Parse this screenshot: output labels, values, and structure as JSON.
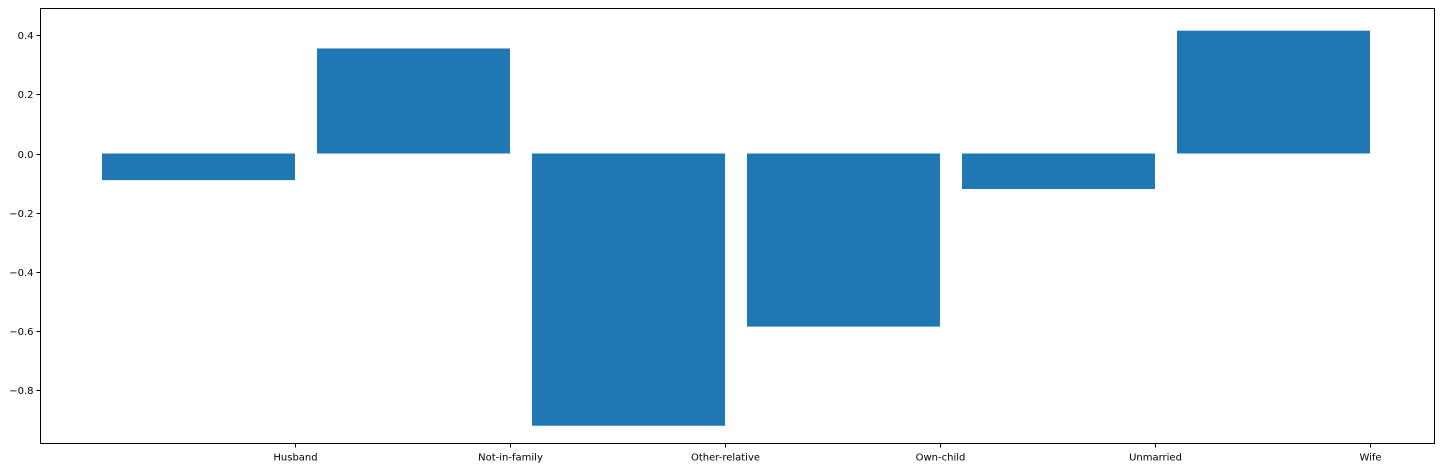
{
  "chart_data": {
    "type": "bar",
    "categories": [
      "Husband",
      "Not-in-family",
      "Other-relative",
      "Own-child",
      "Unmarried",
      "Wife"
    ],
    "values": [
      -0.09,
      0.355,
      -0.92,
      -0.585,
      -0.12,
      0.415
    ],
    "title": "",
    "xlabel": "",
    "ylabel": "",
    "ylim": [
      -0.98,
      0.49
    ],
    "yticks": [
      0.4,
      0.2,
      0.0,
      -0.2,
      -0.4,
      -0.6,
      -0.8
    ],
    "ytick_labels": [
      "0.4",
      "0.2",
      "0.0",
      "−0.2",
      "−0.4",
      "−0.6",
      "−0.8"
    ],
    "grid": false,
    "legend": "none",
    "bar_color": "#1f77b4",
    "tick_alignment": "right-edge-of-bar"
  }
}
